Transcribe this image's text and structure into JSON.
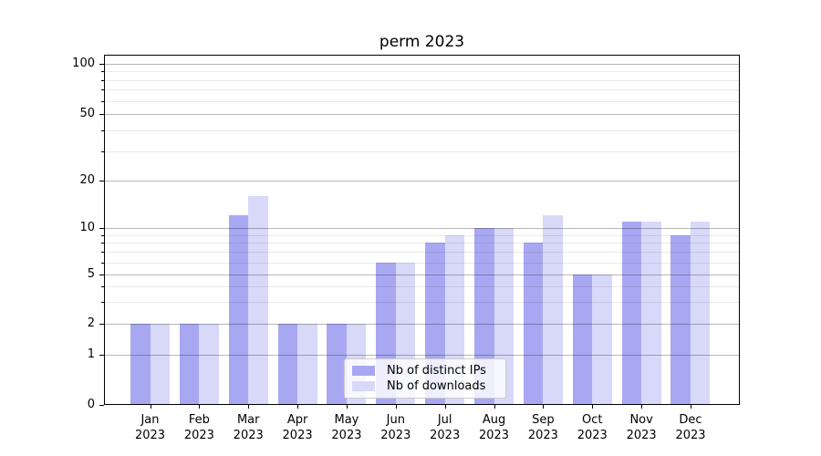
{
  "title": "perm 2023",
  "chart_data": {
    "type": "bar",
    "title": "perm 2023",
    "categories": [
      "Jan 2023",
      "Feb 2023",
      "Mar 2023",
      "Apr 2023",
      "May 2023",
      "Jun 2023",
      "Jul 2023",
      "Aug 2023",
      "Sep 2023",
      "Oct 2023",
      "Nov 2023",
      "Dec 2023"
    ],
    "series": [
      {
        "name": "Nb of distinct IPs",
        "color": "#a8a8f2",
        "values": [
          2,
          2,
          12,
          2,
          2,
          6,
          8,
          10,
          8,
          5,
          11,
          9
        ]
      },
      {
        "name": "Nb of downloads",
        "color": "#d8d8f8",
        "values": [
          2,
          2,
          16,
          2,
          2,
          6,
          9,
          10,
          12,
          5,
          11,
          11
        ]
      }
    ],
    "xlabel": "",
    "ylabel": "",
    "yscale": "symlog",
    "ylim": [
      0,
      100
    ],
    "y_major_ticks": [
      0,
      1,
      2,
      5,
      10,
      20,
      50,
      100
    ],
    "y_minor_ticks": [
      3,
      4,
      6,
      7,
      8,
      9,
      30,
      40,
      60,
      70,
      80,
      90
    ],
    "grid": "on",
    "legend_position": "lower center"
  }
}
